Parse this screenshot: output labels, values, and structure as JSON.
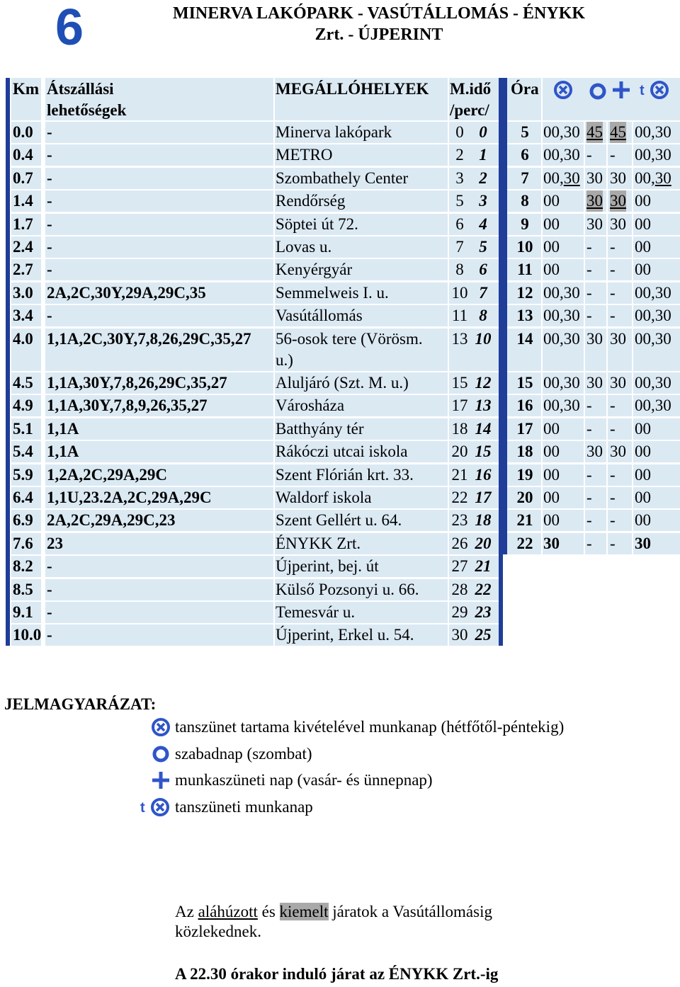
{
  "route_number": "6",
  "title_line1": "MINERVA LAKÓPARK - VASÚTÁLLOMÁS - ÉNYKK",
  "title_line2": "Zrt. - ÚJPERINT",
  "headers": {
    "km": "Km",
    "transfer1": "Átszállási",
    "transfer2": "lehetőségek",
    "stops": "MEGÁLLÓHELYEK",
    "time1": "M.idő",
    "time2": "/perc/",
    "hour": "Óra"
  },
  "stops": [
    {
      "km": "0.0",
      "transfer": "-",
      "name": "Minerva lakópark",
      "t1": "0",
      "t2": "0"
    },
    {
      "km": "0.4",
      "transfer": "-",
      "name": "METRO",
      "t1": "2",
      "t2": "1"
    },
    {
      "km": "0.7",
      "transfer": "-",
      "name": "Szombathely Center",
      "t1": "3",
      "t2": "2"
    },
    {
      "km": "1.4",
      "transfer": "-",
      "name": "Rendőrség",
      "t1": "5",
      "t2": "3"
    },
    {
      "km": "1.7",
      "transfer": "-",
      "name": "Söptei út 72.",
      "t1": "6",
      "t2": "4"
    },
    {
      "km": "2.4",
      "transfer": "-",
      "name": "Lovas u.",
      "t1": "7",
      "t2": "5"
    },
    {
      "km": "2.7",
      "transfer": "-",
      "name": "Kenyérgyár",
      "t1": "8",
      "t2": "6"
    },
    {
      "km": "3.0",
      "transfer": "2A,2C,30Y,29A,29C,35",
      "name": "Semmelweis I. u.",
      "t1": "10",
      "t2": "7"
    },
    {
      "km": "3.4",
      "transfer": "-",
      "name": "Vasútállomás",
      "t1": "11",
      "t2": "8"
    },
    {
      "km": "4.0",
      "transfer": "1,1A,2C,30Y,7,8,26,29C,35,27",
      "name": "56-osok tere (Vörösm.",
      "name2": "u.)",
      "t1": "13",
      "t2": "10"
    },
    {
      "km": "4.5",
      "transfer": "1,1A,30Y,7,8,26,29C,35,27",
      "name": "Aluljáró (Szt. M. u.)",
      "t1": "15",
      "t2": "12"
    },
    {
      "km": "4.9",
      "transfer": "1,1A,30Y,7,8,9,26,35,27",
      "name": "Városháza",
      "t1": "17",
      "t2": "13"
    },
    {
      "km": "5.1",
      "transfer": "1,1A",
      "name": "Batthyány tér",
      "t1": "18",
      "t2": "14"
    },
    {
      "km": "5.4",
      "transfer": "1,1A",
      "name": "Rákóczi utcai iskola",
      "t1": "20",
      "t2": "15"
    },
    {
      "km": "5.9",
      "transfer": "1,2A,2C,29A,29C",
      "name": "Szent Flórián krt. 33.",
      "t1": "21",
      "t2": "16"
    },
    {
      "km": "6.4",
      "transfer": "1,1U,23.2A,2C,29A,29C",
      "name": "Waldorf iskola",
      "t1": "22",
      "t2": "17"
    },
    {
      "km": "6.9",
      "transfer": "2A,2C,29A,29C,23",
      "name": "Szent Gellért u. 64.",
      "t1": "23",
      "t2": "18"
    },
    {
      "km": "7.6",
      "transfer": "23",
      "name": "ÉNYKK Zrt.",
      "t1": "26",
      "t2": "20"
    },
    {
      "km": "8.2",
      "transfer": "-",
      "name": "Újperint, bej. út",
      "t1": "27",
      "t2": "21"
    },
    {
      "km": "8.5",
      "transfer": "-",
      "name": "Külső Pozsonyi u. 66.",
      "t1": "28",
      "t2": "22"
    },
    {
      "km": "9.1",
      "transfer": "-",
      "name": "Temesvár u.",
      "t1": "29",
      "t2": "23"
    },
    {
      "km": "10.0",
      "transfer": "-",
      "name": "Újperint, Erkel u. 54.",
      "t1": "30",
      "t2": "25"
    }
  ],
  "hours": [
    {
      "h": "5",
      "a": "00,30",
      "b": "45",
      "c": "45",
      "d": "00,30"
    },
    {
      "h": "6",
      "a": "00,30",
      "b": "-",
      "c": "-",
      "d": "00,30"
    },
    {
      "h": "7",
      "a": "00,30",
      "b": "30",
      "c": "30",
      "d": "00,30"
    },
    {
      "h": "8",
      "a": "00",
      "b": "30",
      "c": "30",
      "d": "00"
    },
    {
      "h": "9",
      "a": "00",
      "b": "30",
      "c": "30",
      "d": "00"
    },
    {
      "h": "10",
      "a": "00",
      "b": "-",
      "c": "-",
      "d": "00"
    },
    {
      "h": "11",
      "a": "00",
      "b": "-",
      "c": "-",
      "d": "00"
    },
    {
      "h": "12",
      "a": "00,30",
      "b": "-",
      "c": "-",
      "d": "00,30"
    },
    {
      "h": "13",
      "a": "00,30",
      "b": "-",
      "c": "-",
      "d": "00,30"
    },
    {
      "h": "14",
      "a": "00,30",
      "b": "30",
      "c": "30",
      "d": "00,30"
    },
    {
      "h": "15",
      "a": "00,30",
      "b": "30",
      "c": "30",
      "d": "00,30"
    },
    {
      "h": "16",
      "a": "00,30",
      "b": "-",
      "c": "-",
      "d": "00,30"
    },
    {
      "h": "17",
      "a": "00",
      "b": "-",
      "c": "-",
      "d": "00"
    },
    {
      "h": "18",
      "a": "00",
      "b": "30",
      "c": "30",
      "d": "00"
    },
    {
      "h": "19",
      "a": "00",
      "b": "-",
      "c": "-",
      "d": "00"
    },
    {
      "h": "20",
      "a": "00",
      "b": "-",
      "c": "-",
      "d": "00"
    },
    {
      "h": "21",
      "a": "00",
      "b": "-",
      "c": "-",
      "d": "00"
    },
    {
      "h": "22",
      "a": "30",
      "b": "-",
      "c": "-",
      "d": "30"
    }
  ],
  "legend": {
    "title": "JELMAGYARÁZAT:",
    "items": [
      {
        "icon": "school-break-icon",
        "text": "tanszünet tartama kivételével munkanap (hétfőtől-péntekig)"
      },
      {
        "icon": "free-day-icon",
        "text": "szabadnap (szombat)"
      },
      {
        "icon": "holiday-cross-icon",
        "text": "munkaszüneti nap (vasár- és ünnepnap)"
      },
      {
        "icon": "school-break-workday-icon",
        "text": "tanszüneti munkanap"
      }
    ]
  },
  "note": {
    "p1": "Az",
    "underlined": "aláhúzott",
    "and": "és",
    "highlighted": "kiemelt",
    "rest": "járatok a Vasútállomásig",
    "line2": "közlekednek.",
    "final": "A 22.30 órakor induló járat az ÉNYKK Zrt.-ig"
  },
  "colors": {
    "accent": "#1f4fb4",
    "row_bg": "#dbe9f3",
    "bar": "#1f3d99",
    "highlight": "#a9a9a9"
  }
}
